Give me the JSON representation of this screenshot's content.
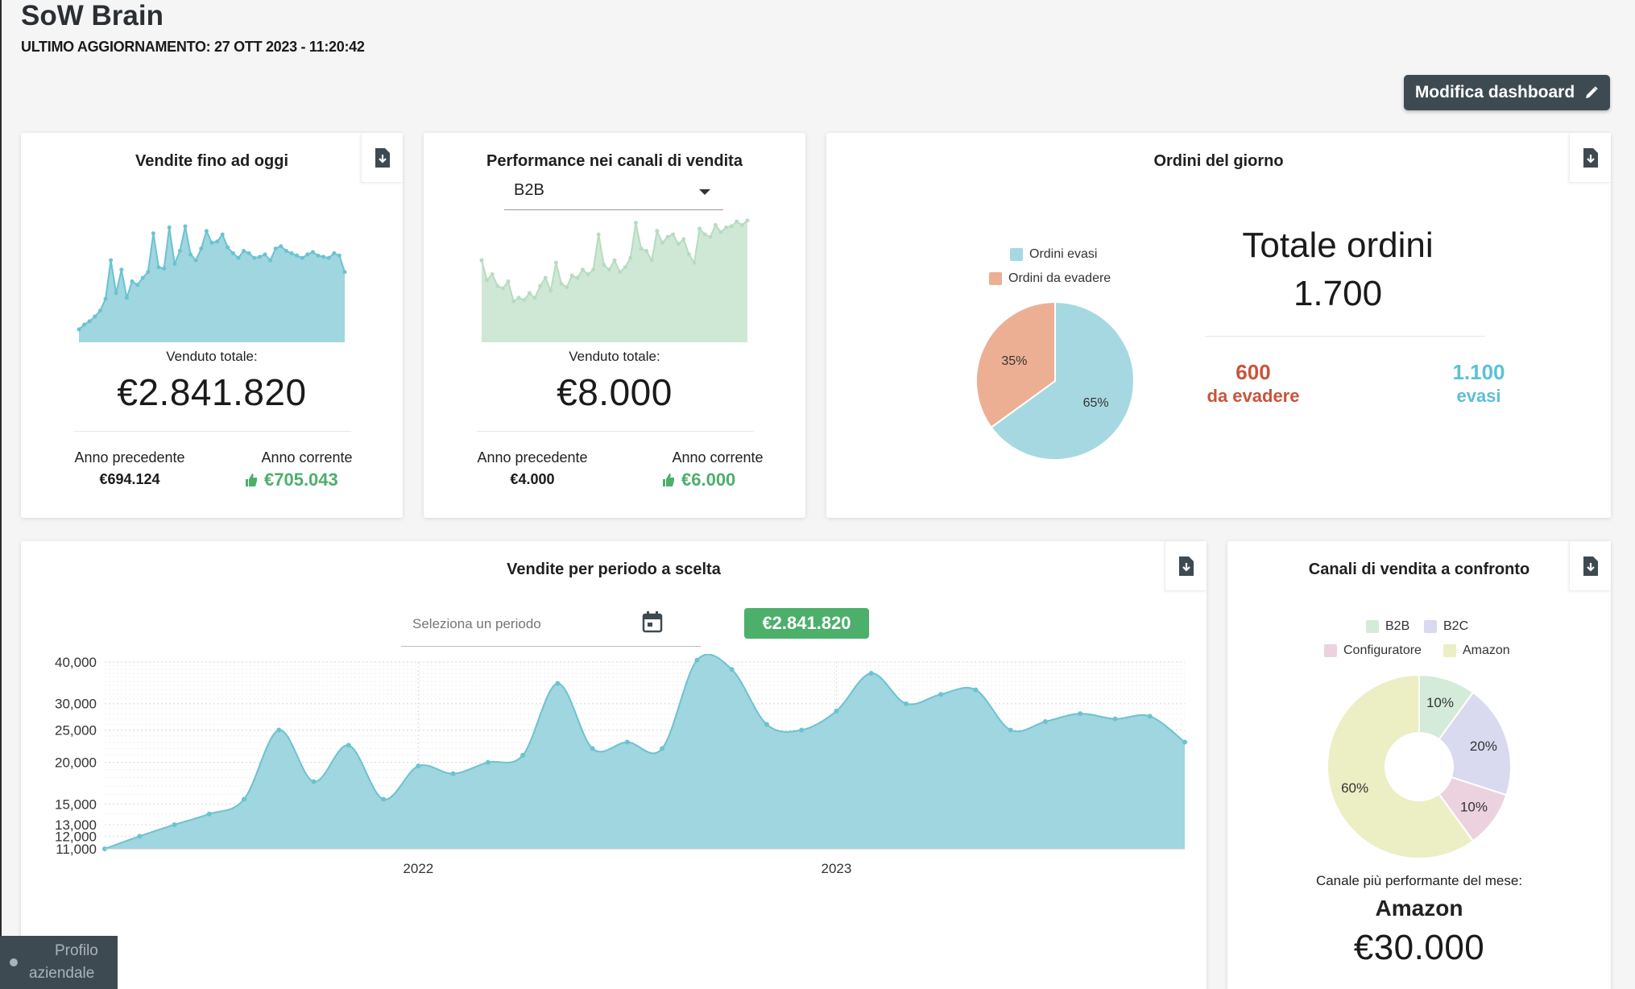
{
  "header": {
    "title": "SoW Brain",
    "last_update": "ULTIMO AGGIORNAMENTO: 27 OTT 2023 - 11:20:42",
    "edit_button": "Modifica dashboard"
  },
  "sales_to_date": {
    "title": "Vendite fino ad oggi",
    "total_label": "Venduto totale:",
    "total_value": "€2.841.820",
    "prev_label": "Anno precedente",
    "prev_value": "€694.124",
    "cur_label": "Anno corrente",
    "cur_value": "€705.043",
    "color": "#9fd6df"
  },
  "channel_performance": {
    "title": "Performance nei canali di vendita",
    "selected_channel": "B2B",
    "total_label": "Venduto totale:",
    "total_value": "€8.000",
    "prev_label": "Anno precedente",
    "prev_value": "€4.000",
    "cur_label": "Anno corrente",
    "cur_value": "€6.000",
    "color": "#cfe8d6"
  },
  "orders_today": {
    "title": "Ordini del giorno",
    "legend": [
      "Ordini evasi",
      "Ordini da evadere"
    ],
    "slice_evasi_label": "65%",
    "slice_daevadere_label": "35%",
    "totale_title": "Totale ordini",
    "totale_value": "1.700",
    "da_evadere_num": "600",
    "da_evadere_lbl": "da evadere",
    "evasi_num": "1.100",
    "evasi_lbl": "evasi",
    "colors": {
      "evasi": "#a6d8e2",
      "da_evadere": "#ecaf94",
      "da_evadere_text": "#c9533a",
      "evasi_text": "#5bc0d6"
    }
  },
  "period_sales": {
    "title": "Vendite per periodo a scelta",
    "period_placeholder": "Seleziona un periodo",
    "badge": "€2.841.820"
  },
  "channels_compare": {
    "title": "Canali di vendita a confronto",
    "legend": [
      "B2B",
      "B2C",
      "Configuratore",
      "Amazon"
    ],
    "best_label": "Canale più performante del mese:",
    "best_name": "Amazon",
    "best_value": "€30.000"
  },
  "profile": {
    "line1": "Profilo",
    "line2": "aziendale"
  },
  "chart_data": [
    {
      "type": "area",
      "title": "Vendite fino ad oggi",
      "x": [
        0,
        1,
        2,
        3,
        4,
        5,
        6,
        7,
        8,
        9,
        10,
        11,
        12,
        13,
        14,
        15,
        16,
        17,
        18,
        19,
        20,
        21,
        22,
        23,
        24,
        25,
        26,
        27,
        28,
        29,
        30,
        31,
        32,
        33,
        34,
        35,
        36,
        37,
        38,
        39,
        40,
        41,
        42,
        43,
        44,
        45,
        46,
        47,
        48,
        49,
        50
      ],
      "values": [
        11,
        15,
        18,
        22,
        27,
        37,
        70,
        42,
        62,
        38,
        52,
        49,
        55,
        60,
        93,
        64,
        63,
        98,
        67,
        78,
        99,
        75,
        70,
        80,
        95,
        85,
        86,
        92,
        81,
        76,
        72,
        78,
        76,
        72,
        73,
        75,
        70,
        80,
        82,
        78,
        76,
        74,
        72,
        75,
        77,
        74,
        73,
        72,
        76,
        74,
        60
      ],
      "ylim": [
        0,
        110
      ]
    },
    {
      "type": "area",
      "title": "Performance nei canali di vendita",
      "x": [
        0,
        1,
        2,
        3,
        4,
        5,
        6,
        7,
        8,
        9,
        10,
        11,
        12,
        13,
        14,
        15,
        16,
        17,
        18,
        19,
        20,
        21,
        22,
        23,
        24,
        25,
        26,
        27,
        28,
        29,
        30,
        31,
        32,
        33,
        34,
        35,
        36,
        37,
        38,
        39,
        40,
        41,
        42,
        43,
        44,
        45,
        46,
        47,
        48,
        49,
        50
      ],
      "values": [
        70,
        53,
        58,
        48,
        46,
        52,
        35,
        38,
        36,
        42,
        38,
        48,
        55,
        44,
        68,
        50,
        47,
        57,
        55,
        62,
        58,
        62,
        92,
        66,
        62,
        70,
        60,
        64,
        72,
        102,
        80,
        78,
        70,
        95,
        85,
        90,
        92,
        84,
        88,
        75,
        68,
        97,
        92,
        90,
        100,
        94,
        98,
        99,
        103,
        100,
        104
      ],
      "ylim": [
        0,
        110
      ]
    },
    {
      "type": "pie",
      "title": "Ordini del giorno",
      "categories": [
        "Ordini evasi",
        "Ordini da evadere"
      ],
      "values": [
        65,
        35
      ]
    },
    {
      "type": "area",
      "title": "Vendite per periodo a scelta",
      "x": [
        "2021-04",
        "2021-05",
        "2021-06",
        "2021-07",
        "2021-08",
        "2021-09",
        "2021-10",
        "2021-11",
        "2021-12",
        "2022-01",
        "2022-02",
        "2022-03",
        "2022-04",
        "2022-05",
        "2022-06",
        "2022-07",
        "2022-08",
        "2022-09",
        "2022-10",
        "2022-11",
        "2022-12",
        "2023-01",
        "2023-02",
        "2023-03",
        "2023-04",
        "2023-05",
        "2023-06",
        "2023-07",
        "2023-08",
        "2023-09",
        "2023-10",
        "2023-11"
      ],
      "values": [
        11000,
        12000,
        13000,
        14000,
        15500,
        25000,
        17500,
        22500,
        15500,
        19500,
        18500,
        20000,
        21000,
        34500,
        22000,
        23000,
        22000,
        40500,
        38000,
        26000,
        25000,
        28500,
        37000,
        30000,
        32000,
        33000,
        25000,
        26500,
        28000,
        27000,
        27500,
        23000
      ],
      "xticks": [
        "2022",
        "2023"
      ],
      "yticks": [
        11000,
        12000,
        13000,
        15000,
        20000,
        25000,
        30000,
        40000
      ],
      "ytick_labels": [
        "11,000",
        "12,000",
        "13,000",
        "15,000",
        "20,000",
        "25,000",
        "30,000",
        "40,000"
      ],
      "ylim": [
        11000,
        40000
      ],
      "yscale": "log",
      "color": "#9fd6df"
    },
    {
      "type": "pie",
      "title": "Canali di vendita a confronto",
      "categories": [
        "B2B",
        "B2C",
        "Configuratore",
        "Amazon"
      ],
      "values": [
        10,
        20,
        10,
        60
      ],
      "labels": [
        "10%",
        "20%",
        "10%",
        "60%"
      ],
      "colors": [
        "#d5ebd9",
        "#d9d9ef",
        "#ecd2df",
        "#ebefc3"
      ],
      "donut": true
    }
  ]
}
